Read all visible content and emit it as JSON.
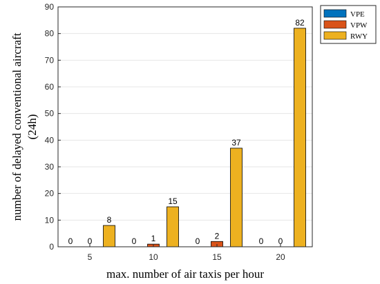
{
  "chart_data": {
    "type": "bar",
    "categories": [
      "5",
      "10",
      "15",
      "20"
    ],
    "series": [
      {
        "name": "VPE",
        "values": [
          0,
          0,
          0,
          0
        ],
        "color": "#0072BD"
      },
      {
        "name": "VPW",
        "values": [
          0,
          1,
          2,
          0
        ],
        "color": "#D95319"
      },
      {
        "name": "RWY",
        "values": [
          8,
          15,
          37,
          82
        ],
        "color": "#EDB120"
      }
    ],
    "xlabel": "max. number of air taxis per hour",
    "ylabel_lines": [
      "number of delayed conventional aircraft",
      "(24h)"
    ],
    "ylim": [
      0,
      90
    ],
    "yticks": [
      0,
      10,
      20,
      30,
      40,
      50,
      60,
      70,
      80,
      90
    ],
    "grid": true,
    "legend": "top-right outside"
  }
}
